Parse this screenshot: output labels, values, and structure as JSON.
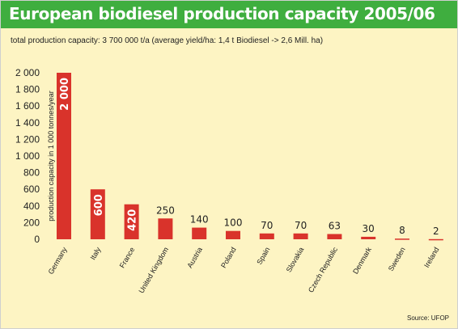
{
  "title": "European biodiesel production capacity 2005/06",
  "subtitle": "total production capacity: 3 700 000 t/a (average yield/ha: 1,4 t Biodiesel  -> 2,6 Mill. ha)",
  "source": "Source: UFOP",
  "colors": {
    "header": "#3fae3f",
    "background": "#fdf4c3",
    "bar": "#d9332b",
    "axis": "#222222"
  },
  "chart_data": {
    "type": "bar",
    "title": "European biodiesel production capacity 2005/06",
    "subtitle": "total production capacity: 3 700 000 t/a (average yield/ha: 1,4 t Biodiesel  -> 2,6 Mill. ha)",
    "xlabel": "",
    "ylabel": "production capacity in 1 000 tonnes/year",
    "ylim": [
      0,
      2000
    ],
    "yticks": [
      "0",
      "200",
      "400",
      "600",
      "800",
      "1 000",
      "1 200",
      "1 400",
      "1 600",
      "1 800",
      "2 000"
    ],
    "grid": false,
    "categories": [
      "Germany",
      "Italy",
      "France",
      "United Kingdom",
      "Austria",
      "Poland",
      "Spain",
      "Slovakia",
      "Czech Republic",
      "Denmark",
      "Sweden",
      "Ireland"
    ],
    "values": [
      2000,
      600,
      420,
      250,
      140,
      100,
      70,
      70,
      63,
      30,
      8,
      2
    ],
    "labels": [
      "2 000",
      "600",
      "420",
      "250",
      "140",
      "100",
      "70",
      "70",
      "63",
      "30",
      "8",
      "2"
    ]
  }
}
